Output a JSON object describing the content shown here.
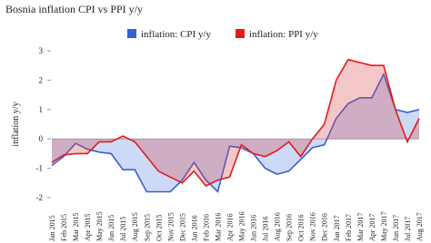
{
  "chart_data": {
    "type": "line",
    "title": "Bosnia inflation CPI vs PPI y/y",
    "y_label": "inflation y/y",
    "categories": [
      "Jan 2015",
      "Feb 2015",
      "Mar 2015",
      "Apr 2015",
      "May 2015",
      "Jun 2015",
      "Jul 2015",
      "Aug 2015",
      "Sep 2015",
      "Oct 2015",
      "Nov 2015",
      "Dec 2015",
      "Jan 2016",
      "Feb 2016",
      "Mar 2016",
      "Apr 2016",
      "May 2016",
      "Jun 2016",
      "Jul 2016",
      "Aug 2016",
      "Sep 2016",
      "Oct 2016",
      "Nov 2016",
      "Dec 2016",
      "Jan 2017",
      "Feb 2017",
      "Mar 2017",
      "Apr 2017",
      "May 2017",
      "Jun 2017",
      "Jul 2017",
      "Aug 2017"
    ],
    "series": [
      {
        "name": "inflation: CPI y/y",
        "color": "#3b5fd0",
        "fill": "rgba(110,150,235,0.35)",
        "values": [
          -0.9,
          -0.6,
          -0.15,
          -0.35,
          -0.45,
          -0.5,
          -1.05,
          -1.05,
          -1.8,
          -1.8,
          -1.8,
          -1.4,
          -0.8,
          -1.4,
          -1.8,
          -0.25,
          -0.3,
          -0.5,
          -1.0,
          -1.2,
          -1.1,
          -0.7,
          -0.3,
          -0.2,
          0.7,
          1.2,
          1.4,
          1.4,
          2.2,
          1.0,
          0.9,
          1.0
        ]
      },
      {
        "name": "inflation: PPI y/y",
        "color": "#e31a1c",
        "fill": "rgba(215,70,70,0.3)",
        "values": [
          -0.8,
          -0.55,
          -0.5,
          -0.5,
          -0.1,
          -0.1,
          0.1,
          -0.1,
          -0.6,
          -1.1,
          -1.3,
          -1.5,
          -1.1,
          -1.6,
          -1.4,
          -1.3,
          -0.2,
          -0.5,
          -0.6,
          -0.4,
          -0.1,
          -0.6,
          0,
          0.5,
          2.0,
          2.7,
          2.6,
          2.5,
          2.5,
          1.0,
          -0.1,
          0.7
        ]
      }
    ],
    "ylim": [
      -2,
      3
    ],
    "yticks": [
      -2,
      -1,
      0,
      1,
      2,
      3
    ],
    "grid": false
  }
}
